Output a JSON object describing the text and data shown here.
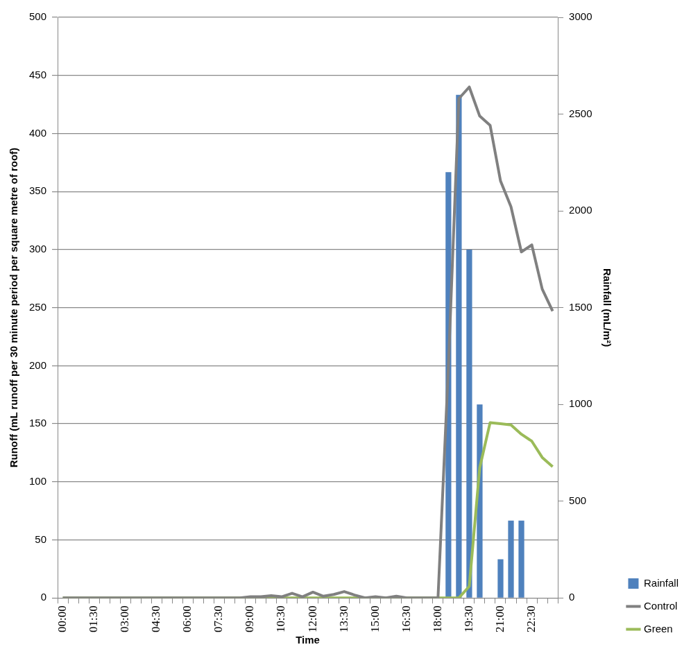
{
  "chart_data": {
    "type": "line",
    "xlabel": "Time",
    "ylabel": "Runoff (mL runoff per 30 minute period per square metre of roof)",
    "y2label": "Rainfall (mL/m²)",
    "categories": [
      "00:00",
      null,
      null,
      "01:30",
      null,
      null,
      "03:00",
      null,
      null,
      "04:30",
      null,
      null,
      "06:00",
      null,
      null,
      "07:30",
      null,
      null,
      "09:00",
      null,
      null,
      "10:30",
      null,
      null,
      "12:00",
      null,
      null,
      "13:30",
      null,
      null,
      "15:00",
      null,
      null,
      "16:30",
      null,
      null,
      "18:00",
      null,
      null,
      "19:30",
      null,
      null,
      "21:00",
      null,
      null,
      "22:30",
      null,
      null
    ],
    "series": [
      {
        "name": "Rainfall",
        "type": "bar",
        "axis": "y2",
        "color": "#4f81bd",
        "values": [
          0,
          0,
          0,
          0,
          0,
          0,
          0,
          0,
          0,
          0,
          0,
          0,
          0,
          0,
          0,
          0,
          0,
          0,
          0,
          0,
          0,
          0,
          0,
          0,
          0,
          0,
          0,
          0,
          0,
          0,
          0,
          0,
          0,
          0,
          0,
          0,
          0,
          2200,
          2600,
          1800,
          1000,
          0,
          200,
          400,
          400,
          0,
          0,
          0
        ]
      },
      {
        "name": "Control",
        "color": "#808080",
        "values": [
          0,
          0,
          0,
          0,
          0,
          0,
          0,
          0,
          0,
          0,
          0,
          0,
          0,
          0,
          0,
          0,
          0,
          0,
          1,
          1,
          2,
          1,
          4,
          1,
          5,
          1.5,
          3,
          5.5,
          2.5,
          0,
          1,
          0,
          1.5,
          0,
          0,
          0,
          0,
          200,
          430,
          440,
          415,
          407,
          359,
          337,
          298,
          304,
          266,
          247
        ]
      },
      {
        "name": "Green",
        "color": "#9bbb59",
        "values": [
          0,
          0,
          0,
          0,
          0,
          0,
          0,
          0,
          0,
          0,
          0,
          0,
          0,
          0,
          0,
          0,
          0,
          0,
          0,
          0,
          0,
          0,
          0,
          0,
          0,
          0,
          0,
          0,
          0,
          0,
          0,
          0,
          0,
          0,
          0,
          0,
          0,
          0,
          0,
          10,
          112,
          151,
          150,
          149,
          141,
          135,
          121,
          113
        ]
      }
    ],
    "ylim": [
      0,
      500
    ],
    "yticks": [
      0,
      50,
      100,
      150,
      200,
      250,
      300,
      350,
      400,
      450,
      500
    ],
    "y2lim": [
      0,
      3000
    ],
    "y2ticks": [
      0,
      500,
      1000,
      1500,
      2000,
      2500,
      3000
    ],
    "grid": "y",
    "legend": "bottom right",
    "marker": "none",
    "line_style": "solid"
  }
}
